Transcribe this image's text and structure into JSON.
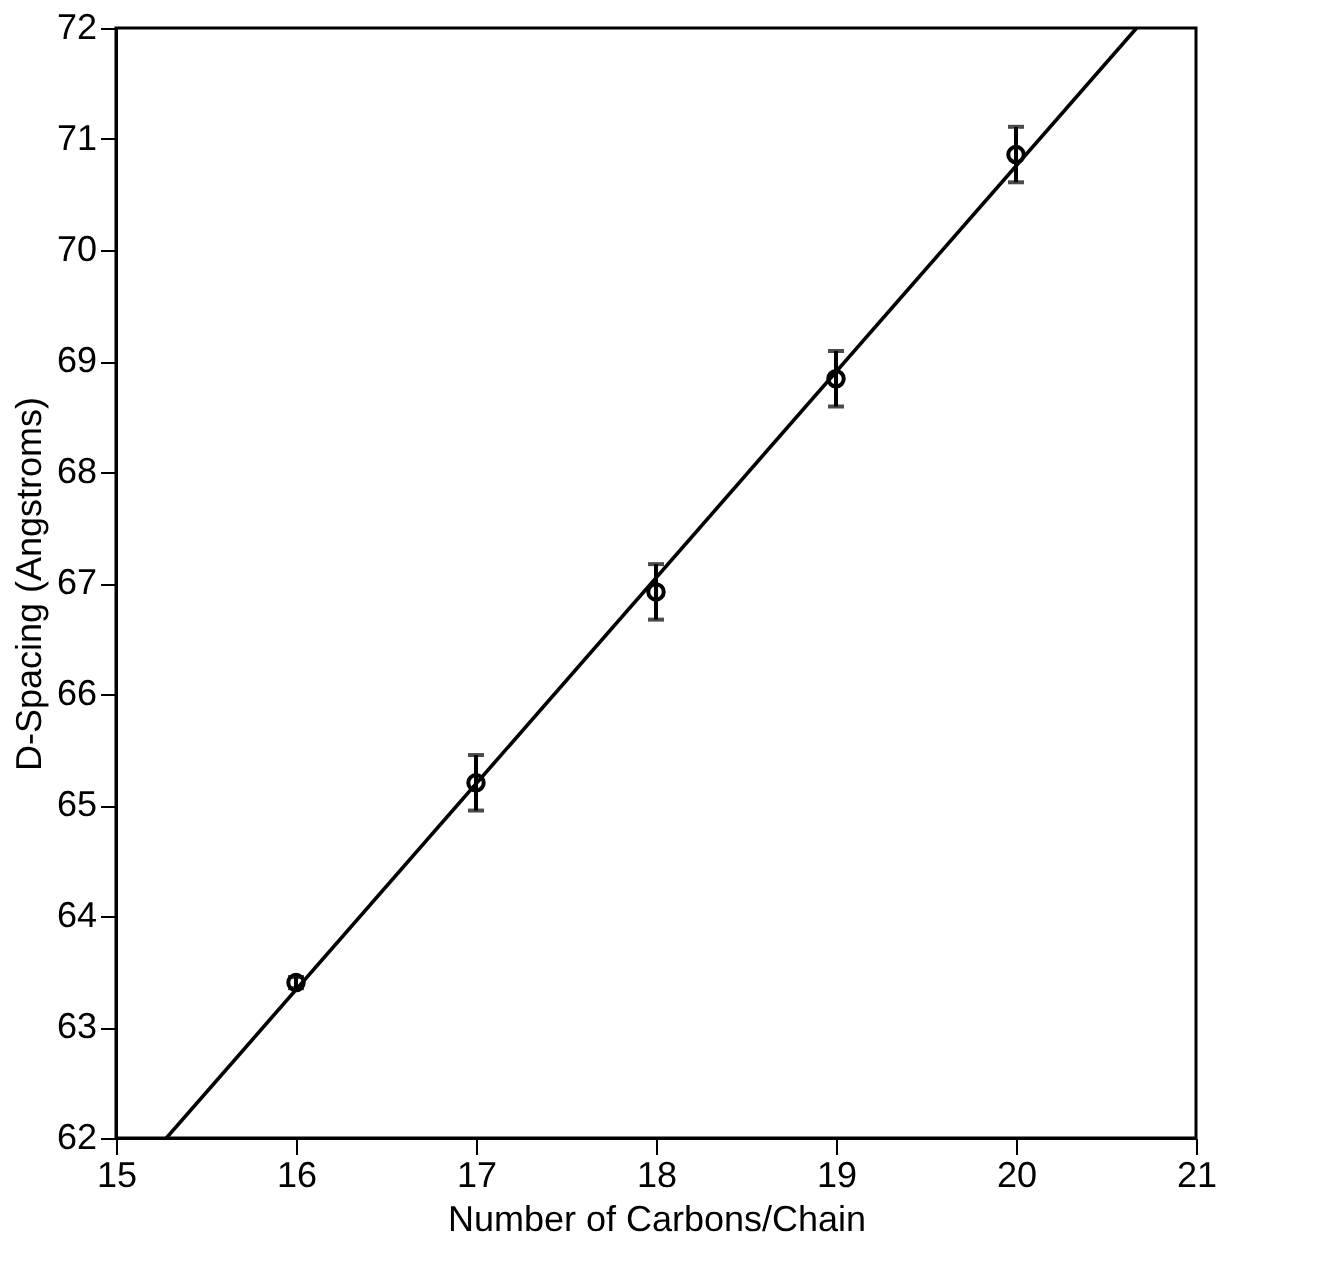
{
  "chart_data": {
    "type": "scatter",
    "xlabel": "Number of Carbons/Chain",
    "ylabel": "D-Spacing (Angstroms)",
    "x": [
      16,
      17,
      18,
      19,
      20
    ],
    "values": [
      63.4,
      65.2,
      66.92,
      68.84,
      70.86
    ],
    "errors": [
      0.05,
      0.25,
      0.25,
      0.25,
      0.25
    ],
    "marker": "circle",
    "color": "#000000",
    "series": [
      {
        "type": "line",
        "x": [
          15.28,
          20.67
        ],
        "values": [
          62,
          72
        ],
        "color": "#000000",
        "line_style": "solid",
        "marker": "none"
      }
    ],
    "xlim": [
      15,
      21
    ],
    "xticks": [
      15,
      16,
      17,
      18,
      19,
      20,
      21
    ],
    "ylim": [
      62,
      72
    ],
    "yticks": [
      62,
      63,
      64,
      65,
      66,
      67,
      68,
      69,
      70,
      71,
      72
    ],
    "grid": false
  }
}
